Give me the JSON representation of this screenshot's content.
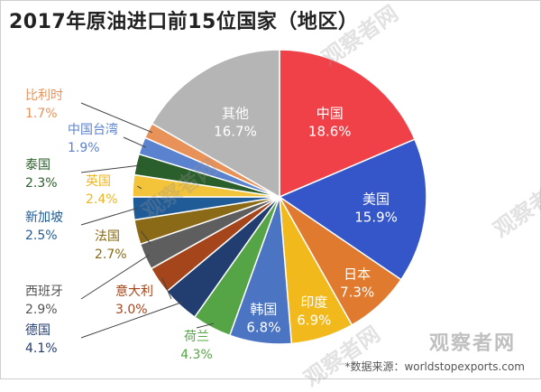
{
  "title": "2017年原油进口前15位国家（地区）",
  "source": "*数据来源：worldstopexports.com",
  "watermark": "观察者网",
  "chart_data": {
    "type": "pie",
    "title": "2017年原油进口前15位国家（地区）",
    "unit": "%",
    "slices": [
      {
        "label": "中国",
        "value": 18.6,
        "value_text": "18.6%",
        "color": "#f04149",
        "label_color": "#ffffff"
      },
      {
        "label": "美国",
        "value": 15.9,
        "value_text": "15.9%",
        "color": "#3456c8",
        "label_color": "#ffffff"
      },
      {
        "label": "日本",
        "value": 7.3,
        "value_text": "7.3%",
        "color": "#e07a2e",
        "label_color": "#ffffff"
      },
      {
        "label": "印度",
        "value": 6.9,
        "value_text": "6.9%",
        "color": "#f1b91c",
        "label_color": "#ffffff"
      },
      {
        "label": "韩国",
        "value": 6.8,
        "value_text": "6.8%",
        "color": "#4b74c2",
        "label_color": "#ffffff"
      },
      {
        "label": "荷兰",
        "value": 4.3,
        "value_text": "4.3%",
        "color": "#55a546",
        "label_color": "#55a546"
      },
      {
        "label": "德国",
        "value": 4.1,
        "value_text": "4.1%",
        "color": "#223d70",
        "label_color": "#223d70"
      },
      {
        "label": "意大利",
        "value": 3.0,
        "value_text": "3.0%",
        "color": "#a5451b",
        "label_color": "#a5451b"
      },
      {
        "label": "西班牙",
        "value": 2.9,
        "value_text": "2.9%",
        "color": "#5e5e5e",
        "label_color": "#555555"
      },
      {
        "label": "法国",
        "value": 2.7,
        "value_text": "2.7%",
        "color": "#8a6a16",
        "label_color": "#8a6a16"
      },
      {
        "label": "新加坡",
        "value": 2.5,
        "value_text": "2.5%",
        "color": "#1f5b96",
        "label_color": "#1f5b96"
      },
      {
        "label": "英国",
        "value": 2.4,
        "value_text": "2.4%",
        "color": "#f3c33a",
        "label_color": "#f0b51f"
      },
      {
        "label": "泰国",
        "value": 2.3,
        "value_text": "2.3%",
        "color": "#2a5e2a",
        "label_color": "#2a5e2a"
      },
      {
        "label": "中国台湾",
        "value": 1.9,
        "value_text": "1.9%",
        "color": "#5b82cf",
        "label_color": "#5b82cf"
      },
      {
        "label": "比利时",
        "value": 1.7,
        "value_text": "1.7%",
        "color": "#e8925a",
        "label_color": "#e8925a"
      },
      {
        "label": "其他",
        "value": 16.7,
        "value_text": "16.7%",
        "color": "#b5b5b5",
        "label_color": "#ffffff"
      }
    ]
  }
}
